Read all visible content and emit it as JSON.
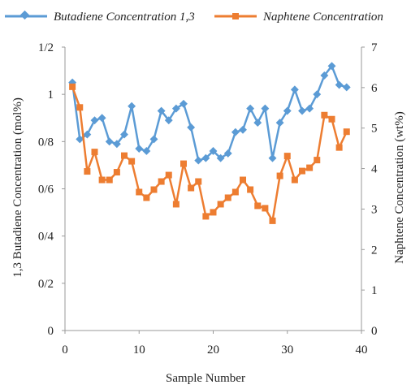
{
  "chart_data": {
    "type": "line",
    "xlabel": "Sample Number",
    "ylabel_left": "1,3 Butadiene Concentration (mol%)",
    "ylabel_right": "Naphtene Concentration (wt%)",
    "xlim": [
      0,
      40
    ],
    "xticks": [
      "0",
      "10",
      "20",
      "30",
      "40"
    ],
    "ylim_left": [
      0,
      1.2
    ],
    "yticks_left": [
      "0",
      "0/2",
      "0/4",
      "0/6",
      "0/8",
      "1",
      "1/2"
    ],
    "ylim_right": [
      0,
      7
    ],
    "yticks_right": [
      "0",
      "1",
      "2",
      "3",
      "4",
      "5",
      "6",
      "7"
    ],
    "grid": false,
    "legend_position": "top",
    "x": [
      1,
      2,
      3,
      4,
      5,
      6,
      7,
      8,
      9,
      10,
      11,
      12,
      13,
      14,
      15,
      16,
      17,
      18,
      19,
      20,
      21,
      22,
      23,
      24,
      25,
      26,
      27,
      28,
      29,
      30,
      31,
      32,
      33,
      34,
      35,
      36,
      37,
      38
    ],
    "series": [
      {
        "name": "Butadiene Concentration 1,3",
        "axis": "left",
        "color": "#5b9bd5",
        "marker": "diamond",
        "values": [
          1.05,
          0.81,
          0.83,
          0.89,
          0.9,
          0.8,
          0.79,
          0.83,
          0.95,
          0.77,
          0.76,
          0.81,
          0.93,
          0.89,
          0.94,
          0.96,
          0.86,
          0.72,
          0.73,
          0.76,
          0.73,
          0.75,
          0.84,
          0.85,
          0.94,
          0.88,
          0.94,
          0.73,
          0.88,
          0.93,
          1.02,
          0.93,
          0.94,
          1.0,
          1.08,
          1.12,
          1.04,
          1.03
        ]
      },
      {
        "name": "Naphtene Concentration",
        "axis": "right",
        "color": "#ed7d31",
        "marker": "square",
        "values": [
          6.02,
          5.51,
          3.93,
          4.41,
          3.72,
          3.72,
          3.91,
          4.32,
          4.18,
          3.42,
          3.28,
          3.48,
          3.68,
          3.84,
          3.12,
          4.12,
          3.52,
          3.68,
          2.82,
          2.92,
          3.12,
          3.28,
          3.42,
          3.72,
          3.48,
          3.08,
          3.02,
          2.71,
          3.82,
          4.31,
          3.72,
          3.94,
          4.02,
          4.21,
          5.32,
          5.22,
          4.52,
          4.91
        ]
      }
    ]
  }
}
